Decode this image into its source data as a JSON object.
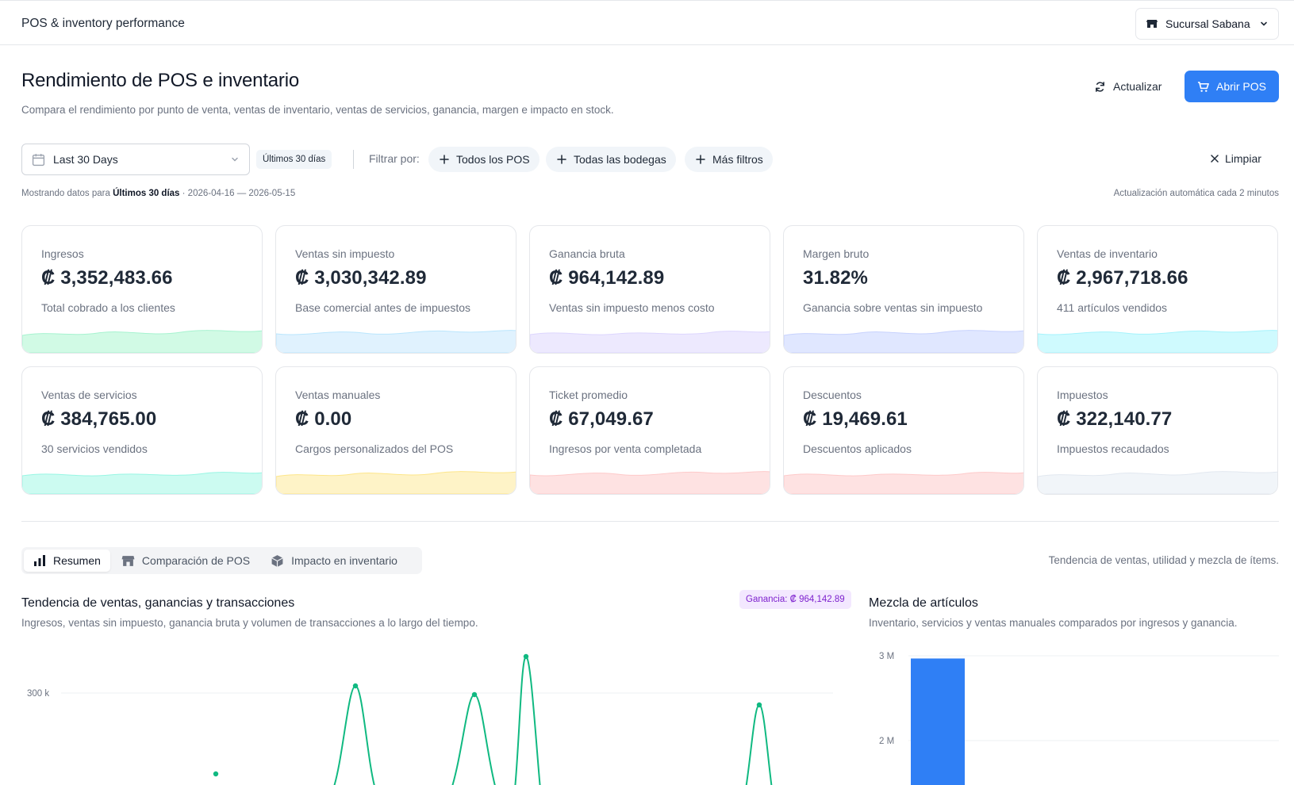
{
  "header": {
    "app_title": "POS & inventory performance",
    "branch": "Sucursal Sabana",
    "branch_icon": "store-icon"
  },
  "page": {
    "title": "Rendimiento de POS e inventario",
    "subtitle": "Compara el rendimiento por punto de venta, ventas de inventario, ventas de servicios, ganancia, margen e impacto en stock.",
    "refresh_label": "Actualizar",
    "open_pos_label": "Abrir POS",
    "accent_color": "#2f7ff5"
  },
  "filters": {
    "date_range": "Last 30 Days",
    "range_badge": "Últimos 30 días",
    "filter_by": "Filtrar por:",
    "chips": [
      "Todos los POS",
      "Todas las bodegas",
      "Más filtros"
    ],
    "clear_label": "Limpiar",
    "showing_prefix": "Mostrando datos para",
    "showing_range": "Últimos 30 días",
    "showing_dates": "· 2026-04-16 — 2026-05-15",
    "auto_update": "Actualización automática cada 2 minutos"
  },
  "kpis": [
    {
      "label": "Ingresos",
      "value": "₡ 3,352,483.66",
      "note": "Total cobrado a los clientes",
      "color": "#d1fae5",
      "stroke": "#a7f3d0"
    },
    {
      "label": "Ventas sin impuesto",
      "value": "₡ 3,030,342.89",
      "note": "Base comercial antes de impuestos",
      "color": "#e0f2fe",
      "stroke": "#bae6fd"
    },
    {
      "label": "Ganancia bruta",
      "value": "₡ 964,142.89",
      "note": "Ventas sin impuesto menos costo",
      "color": "#ede9fe",
      "stroke": "#ddd6fe"
    },
    {
      "label": "Margen bruto",
      "value": "31.82%",
      "note": "Ganancia sobre ventas sin impuesto",
      "color": "#e0e7ff",
      "stroke": "#c7d2fe"
    },
    {
      "label": "Ventas de inventario",
      "value": "₡ 2,967,718.66",
      "note": "411 artículos vendidos",
      "color": "#cffafe",
      "stroke": "#a5f3fc"
    },
    {
      "label": "Ventas de servicios",
      "value": "₡ 384,765.00",
      "note": "30 servicios vendidos",
      "color": "#ccfbf1",
      "stroke": "#99f6e4"
    },
    {
      "label": "Ventas manuales",
      "value": "₡ 0.00",
      "note": "Cargos personalizados del POS",
      "color": "#fef3c7",
      "stroke": "#fde68a"
    },
    {
      "label": "Ticket promedio",
      "value": "₡ 67,049.67",
      "note": "Ingresos por venta completada",
      "color": "#fee2e2",
      "stroke": "#fecaca"
    },
    {
      "label": "Descuentos",
      "value": "₡ 19,469.61",
      "note": "Descuentos aplicados",
      "color": "#fee2e2",
      "stroke": "#fecaca"
    },
    {
      "label": "Impuestos",
      "value": "₡ 322,140.77",
      "note": "Impuestos recaudados",
      "color": "#f1f5f9",
      "stroke": "#e2e8f0"
    }
  ],
  "tabs": {
    "items": [
      {
        "label": "Resumen",
        "icon": "bar-chart-icon",
        "active": true
      },
      {
        "label": "Comparación de POS",
        "icon": "store-icon",
        "active": false
      },
      {
        "label": "Impacto en inventario",
        "icon": "box-icon",
        "active": false
      }
    ],
    "caption": "Tendencia de ventas, utilidad y mezcla de ítems."
  },
  "trend": {
    "title": "Tendencia de ventas, ganancias y transacciones",
    "subtitle": "Ingresos, ventas sin impuesto, ganancia bruta y volumen de transacciones a lo largo del tiempo.",
    "profit_badge": "Ganancia: ₡ 964,142.89"
  },
  "mix": {
    "title": "Mezcla de artículos",
    "subtitle": "Inventario, servicios y ventas manuales comparados por ingresos y ganancia."
  },
  "chart_data": [
    {
      "type": "line",
      "y_ticks": [
        "300 k"
      ],
      "series": [
        {
          "color": "#10b981",
          "peaks_y": [
            220000,
            300000,
            330000,
            360000,
            300000
          ]
        }
      ],
      "grid": true
    },
    {
      "type": "bar",
      "y_ticks": [
        "3 M",
        "2 M"
      ],
      "categories": [
        ""
      ],
      "values": [
        2967718.66
      ],
      "color": "#2f7ff5",
      "grid": true
    }
  ]
}
